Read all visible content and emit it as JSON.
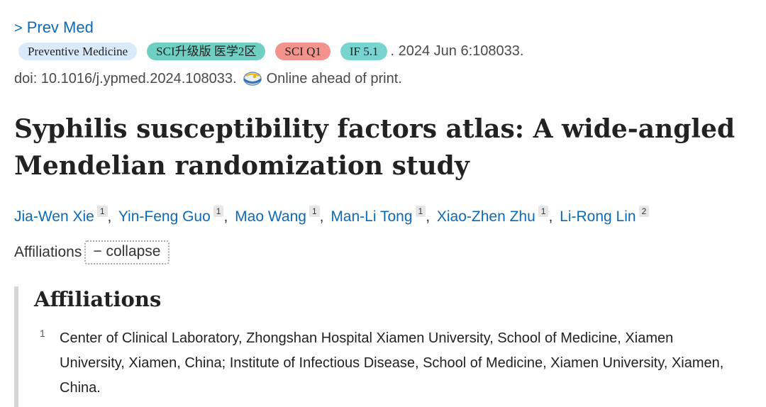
{
  "journal": {
    "chevron": ">",
    "name": "Prev Med"
  },
  "badges": [
    {
      "label": "Preventive Medicine",
      "color": "#d9eaf9"
    },
    {
      "label": "SCI升级版 医学2区",
      "color": "#6fcfc2"
    },
    {
      "label": "SCI Q1",
      "color": "#f2938e"
    },
    {
      "label": "IF 5.1",
      "color": "#79d3cf"
    }
  ],
  "citation": {
    "date_pages": ". 2024 Jun 6:108033.",
    "doi": "doi: 10.1016/j.ypmed.2024.108033.",
    "status": "Online ahead of print.",
    "status_icon": "globe-icon"
  },
  "article": {
    "title": "Syphilis susceptibility factors atlas: A wide-angled Mendelian randomization study"
  },
  "authors": [
    {
      "name": "Jia-Wen Xie",
      "aff": "1"
    },
    {
      "name": "Yin-Feng Guo",
      "aff": "1"
    },
    {
      "name": "Mao Wang",
      "aff": "1"
    },
    {
      "name": "Man-Li Tong",
      "aff": "1"
    },
    {
      "name": "Xiao-Zhen Zhu",
      "aff": "1"
    },
    {
      "name": "Li-Rong Lin",
      "aff": "2"
    }
  ],
  "separator": ",",
  "affiliations_toggle": {
    "label": "Affiliations",
    "button": "− collapse"
  },
  "affiliations": {
    "heading": "Affiliations",
    "items": [
      {
        "num": "1",
        "text": "Center of Clinical Laboratory, Zhongshan Hospital Xiamen University, School of Medicine, Xiamen University, Xiamen, China; Institute of Infectious Disease, School of Medicine, Xiamen University, Xiamen, China."
      }
    ]
  }
}
